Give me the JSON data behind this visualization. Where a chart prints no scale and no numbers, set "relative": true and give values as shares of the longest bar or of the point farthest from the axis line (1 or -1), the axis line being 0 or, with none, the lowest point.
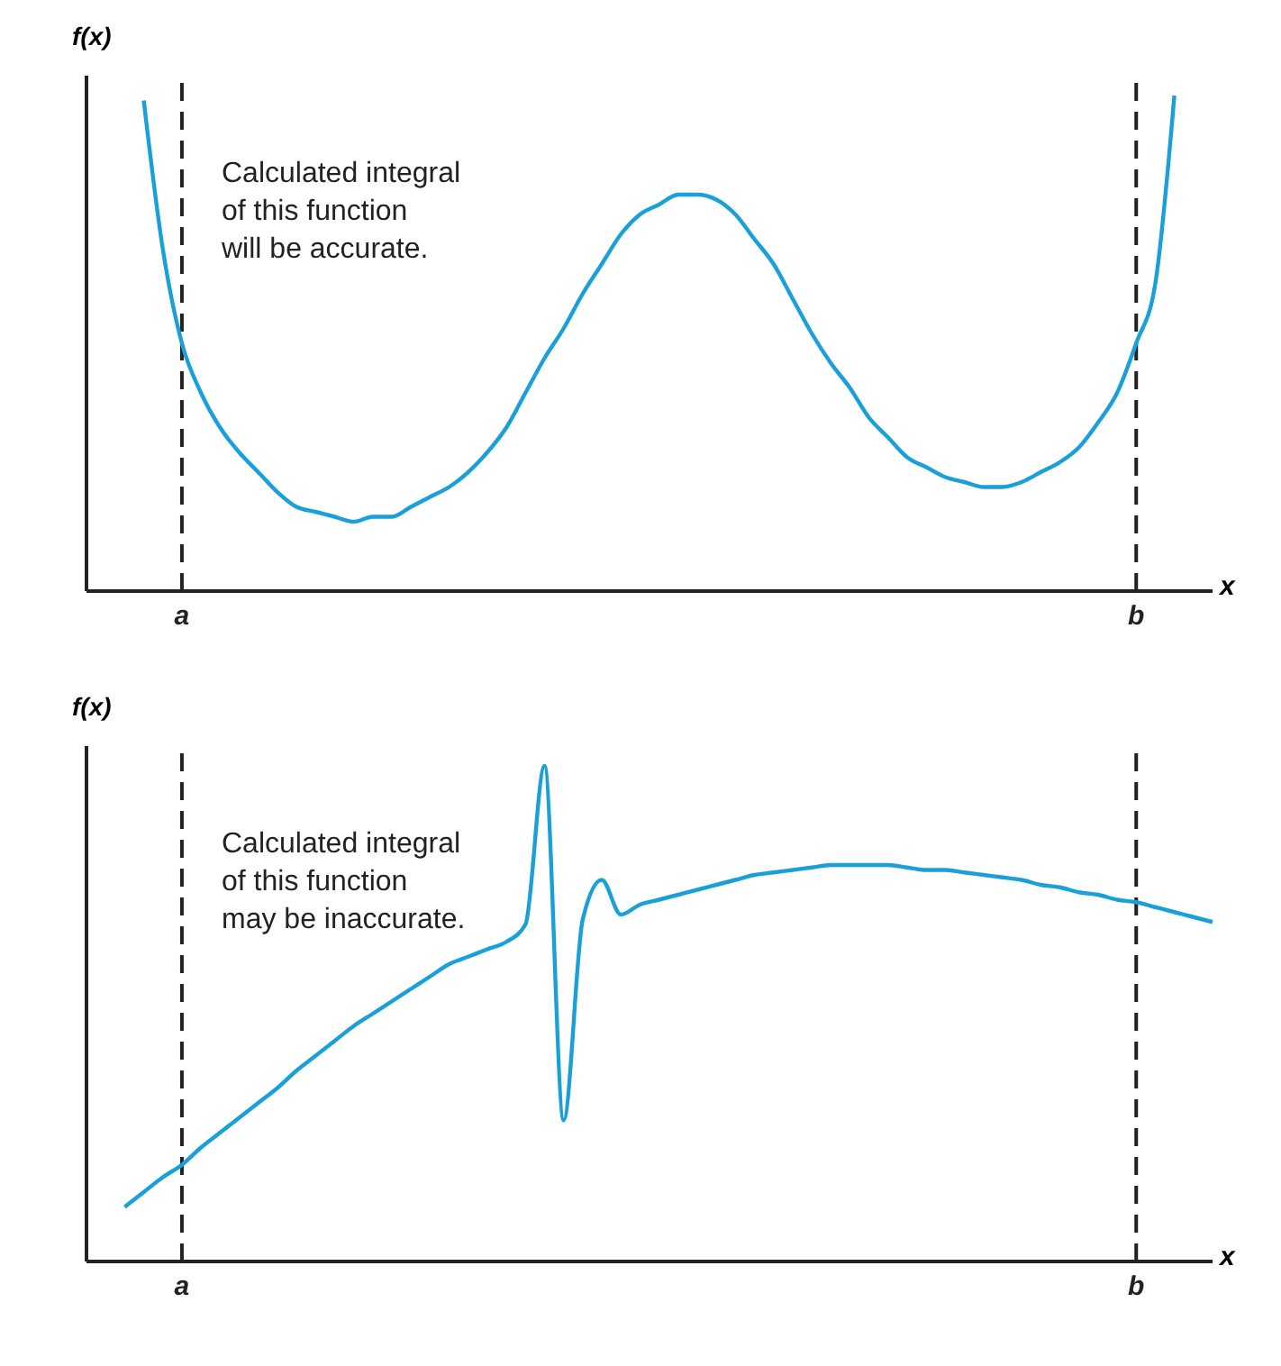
{
  "chart_data": [
    {
      "type": "line",
      "relative": true,
      "xlabel": "x",
      "ylabel": "f(x)",
      "annotations": [
        "Calculated integral\nof this function\nwill be accurate."
      ],
      "tick_labels": "x",
      "marker": "none",
      "line_style": "solid",
      "categories": [
        null,
        null,
        null,
        null,
        null,
        "a",
        null,
        null,
        null,
        null,
        null,
        null,
        null,
        null,
        null,
        null,
        null,
        null,
        null,
        null,
        null,
        null,
        null,
        null,
        null,
        null,
        null,
        null,
        null,
        null,
        null,
        null,
        null,
        null,
        null,
        null,
        null,
        null,
        null,
        null,
        null,
        null,
        null,
        null,
        null,
        null,
        null,
        null,
        null,
        null,
        null,
        null,
        null,
        null,
        null,
        "b",
        null,
        null,
        null,
        null
      ],
      "ref_lines": [
        {
          "axis": "x",
          "value": "a",
          "color": "#222222",
          "line_style": "dashed"
        },
        {
          "axis": "x",
          "value": "b",
          "color": "#222222",
          "line_style": "dashed"
        }
      ],
      "series": [
        {
          "color": "#1aa0d8",
          "values": [
            null,
            null,
            null,
            0.99,
            0.69,
            0.5,
            0.4,
            0.33,
            0.28,
            0.24,
            0.2,
            0.17,
            0.16,
            0.15,
            0.14,
            0.15,
            0.15,
            0.17,
            0.19,
            0.21,
            0.24,
            0.28,
            0.33,
            0.4,
            0.47,
            0.53,
            0.6,
            0.66,
            0.72,
            0.76,
            0.78,
            0.8,
            0.8,
            0.79,
            0.76,
            0.71,
            0.66,
            0.59,
            0.52,
            0.46,
            0.41,
            0.35,
            0.31,
            0.27,
            0.25,
            0.23,
            0.22,
            0.21,
            0.21,
            0.22,
            0.24,
            0.26,
            0.29,
            0.34,
            0.4,
            0.5,
            0.62,
            1.0,
            null,
            null
          ]
        }
      ]
    },
    {
      "type": "line",
      "relative": true,
      "xlabel": "x",
      "ylabel": "f(x)",
      "annotations": [
        "Calculated integral\nof this function\nmay be inaccurate."
      ],
      "tick_labels": "x",
      "marker": "none",
      "line_style": "solid",
      "categories": [
        null,
        null,
        null,
        null,
        null,
        "a",
        null,
        null,
        null,
        null,
        null,
        null,
        null,
        null,
        null,
        null,
        null,
        null,
        null,
        null,
        null,
        null,
        null,
        null,
        null,
        null,
        null,
        null,
        null,
        null,
        null,
        null,
        null,
        null,
        null,
        null,
        null,
        null,
        null,
        null,
        null,
        null,
        null,
        null,
        null,
        null,
        null,
        null,
        null,
        null,
        null,
        null,
        null,
        null,
        null,
        "b",
        null,
        null,
        null,
        null
      ],
      "ref_lines": [
        {
          "axis": "x",
          "value": "a",
          "color": "#222222",
          "line_style": "dashed"
        },
        {
          "axis": "x",
          "value": "b",
          "color": "#222222",
          "line_style": "dashed"
        }
      ],
      "series": [
        {
          "color": "#1aa0d8",
          "values": [
            null,
            null,
            0.11,
            0.14,
            0.17,
            0.195,
            0.23,
            0.26,
            0.29,
            0.32,
            0.35,
            0.385,
            0.415,
            0.445,
            0.475,
            0.5,
            0.525,
            0.55,
            0.575,
            0.6,
            0.615,
            0.63,
            0.645,
            0.68,
            1.0,
            0.285,
            0.69,
            0.77,
            0.7,
            0.72,
            0.73,
            0.74,
            0.75,
            0.76,
            0.77,
            0.78,
            0.785,
            0.79,
            0.795,
            0.8,
            0.8,
            0.8,
            0.8,
            0.795,
            0.79,
            0.79,
            0.785,
            0.78,
            0.775,
            0.77,
            0.76,
            0.755,
            0.745,
            0.74,
            0.73,
            0.725,
            0.715,
            0.705,
            0.695,
            0.685
          ]
        }
      ]
    }
  ]
}
